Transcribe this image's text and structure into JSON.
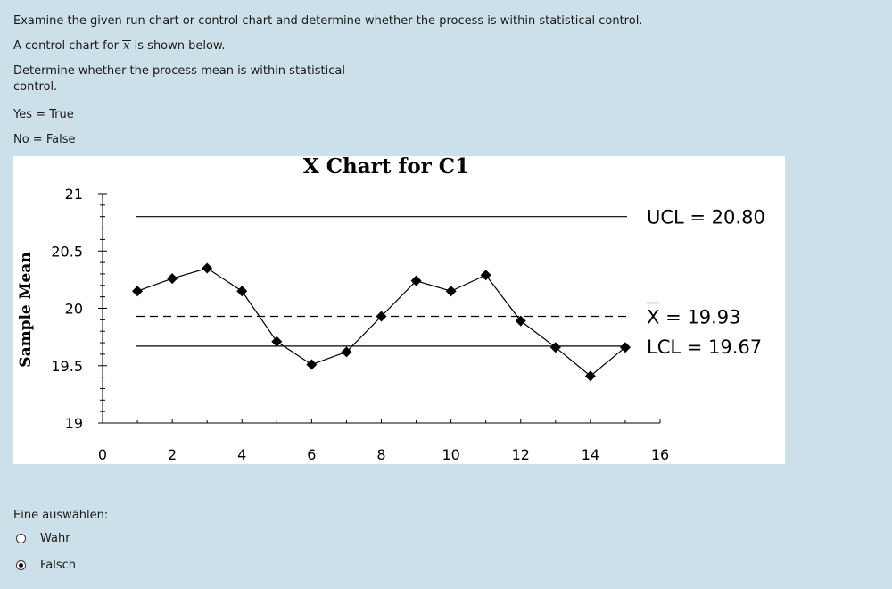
{
  "question": {
    "intro": "Examine the given run chart or control chart and determine whether the process is within statistical control.",
    "chart_line_prefix": "A control chart for",
    "chart_line_symbol": "x",
    "chart_line_suffix": "is shown below.",
    "prompt_line1": "Determine whether the process mean is within statistical",
    "prompt_line2": "control.",
    "yes_text": "Yes = True",
    "no_text": "No = False"
  },
  "chart_data": {
    "type": "line",
    "title": "X Chart for C1",
    "ylabel": "Sample Mean",
    "xlabel": "",
    "xlim": [
      0,
      16
    ],
    "ylim": [
      19,
      21
    ],
    "x_ticks": [
      "0",
      "2",
      "4",
      "6",
      "8",
      "10",
      "12",
      "14",
      "16"
    ],
    "y_ticks": [
      "21",
      "20.5",
      "20",
      "19.5",
      "19"
    ],
    "x": [
      1,
      2,
      3,
      4,
      5,
      6,
      7,
      8,
      9,
      10,
      11,
      12,
      13,
      14,
      15
    ],
    "values": [
      20.15,
      20.26,
      20.35,
      20.15,
      19.71,
      19.51,
      19.62,
      19.93,
      20.24,
      20.15,
      20.29,
      19.89,
      19.66,
      19.41,
      19.66
    ],
    "ucl": {
      "value": 20.8,
      "label": "UCL = 20.80"
    },
    "center": {
      "value": 19.93,
      "label_bar": "X",
      "label_rest": " = 19.93"
    },
    "lcl": {
      "value": 19.67,
      "label": "LCL = 19.67"
    }
  },
  "answer": {
    "label": "Eine auswählen:",
    "options": [
      {
        "text": "Wahr",
        "selected": false
      },
      {
        "text": "Falsch",
        "selected": true
      }
    ]
  }
}
